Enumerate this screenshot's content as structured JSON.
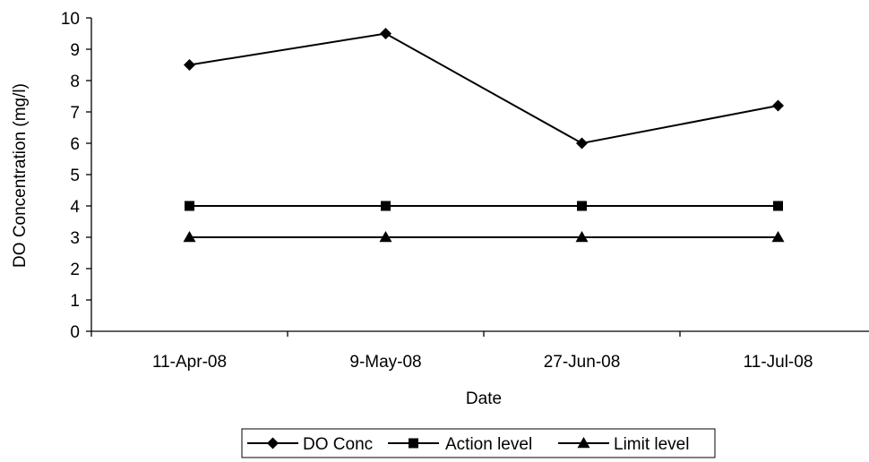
{
  "chart_data": {
    "type": "line",
    "title": "",
    "xlabel": "Date",
    "ylabel": "DO Concentration (mg/l)",
    "categories": [
      "11-Apr-08",
      "9-May-08",
      "27-Jun-08",
      "11-Jul-08"
    ],
    "ylim": [
      0,
      10
    ],
    "yticks": [
      0,
      1,
      2,
      3,
      4,
      5,
      6,
      7,
      8,
      9,
      10
    ],
    "grid": false,
    "legend_position": "bottom",
    "series": [
      {
        "name": "DO Conc",
        "values": [
          8.5,
          9.5,
          6.0,
          7.2
        ],
        "marker": "diamond",
        "color": "#000000"
      },
      {
        "name": "Action level",
        "values": [
          4,
          4,
          4,
          4
        ],
        "marker": "square",
        "color": "#000000"
      },
      {
        "name": "Limit level",
        "values": [
          3,
          3,
          3,
          3
        ],
        "marker": "triangle",
        "color": "#000000"
      }
    ]
  }
}
